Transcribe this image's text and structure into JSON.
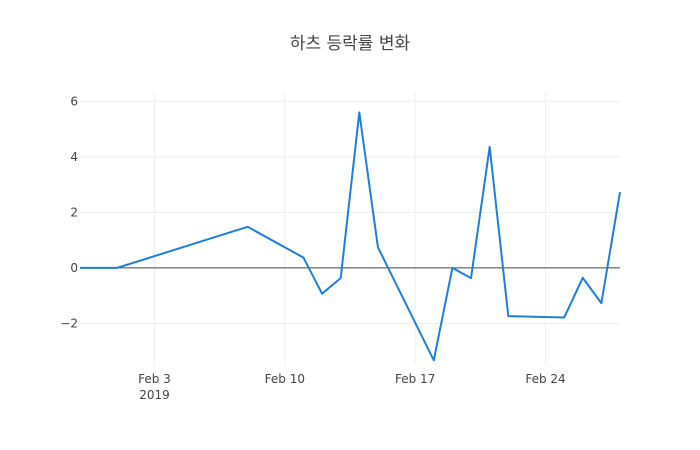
{
  "chart_data": {
    "type": "line",
    "title": "하츠 등락률 변화",
    "xlabel": "",
    "ylabel": "",
    "x_axis_type": "date",
    "xlim": [
      "2019-01-30",
      "2019-02-28"
    ],
    "ylim": [
      -3.5,
      6.3
    ],
    "yticks": [
      -2,
      0,
      2,
      4,
      6
    ],
    "ytick_labels": [
      "−2",
      "0",
      "2",
      "4",
      "6"
    ],
    "xticks": [
      "2019-02-03",
      "2019-02-10",
      "2019-02-17",
      "2019-02-24"
    ],
    "xtick_labels": [
      "Feb 3",
      "Feb 10",
      "Feb 17",
      "Feb 24"
    ],
    "xtick_year_label": "2019",
    "grid": true,
    "zero_line": true,
    "line_color": "#1f7fd8",
    "series": [
      {
        "x": [
          "2019-01-30",
          "2019-01-31",
          "2019-02-01",
          "2019-02-08",
          "2019-02-11",
          "2019-02-12",
          "2019-02-13",
          "2019-02-14",
          "2019-02-15",
          "2019-02-18",
          "2019-02-19",
          "2019-02-20",
          "2019-02-21",
          "2019-02-22",
          "2019-02-25",
          "2019-02-26",
          "2019-02-27",
          "2019-02-28"
        ],
        "y": [
          0,
          0,
          0,
          1.48,
          0.37,
          -0.93,
          -0.37,
          5.6,
          0.74,
          -3.33,
          0,
          -0.37,
          4.36,
          -1.74,
          -1.79,
          -0.36,
          -1.27,
          2.73
        ]
      }
    ]
  }
}
